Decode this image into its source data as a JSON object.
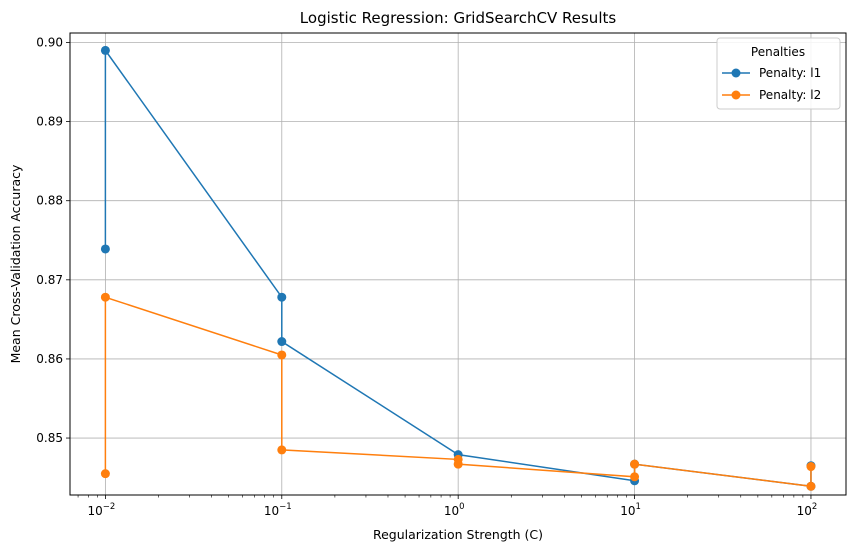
{
  "chart_data": {
    "type": "line",
    "title": "Logistic Regression: GridSearchCV Results",
    "xlabel": "Regularization Strength (C)",
    "ylabel": "Mean Cross-Validation Accuracy",
    "xscale": "log",
    "xlim": [
      0.0063,
      158
    ],
    "ylim": [
      0.8428,
      0.9012
    ],
    "xticks": [
      {
        "value": 0.01,
        "base": "10",
        "exp": "−2"
      },
      {
        "value": 0.1,
        "base": "10",
        "exp": "−1"
      },
      {
        "value": 1,
        "base": "10",
        "exp": "0"
      },
      {
        "value": 10,
        "base": "10",
        "exp": "1"
      },
      {
        "value": 100,
        "base": "10",
        "exp": "2"
      }
    ],
    "yticks": [
      "0.85",
      "0.86",
      "0.87",
      "0.88",
      "0.89",
      "0.90"
    ],
    "grid": true,
    "legend": {
      "title": "Penalties",
      "placement": "top-right"
    },
    "series": [
      {
        "name": "Penalty: l1",
        "color": "#1f77b4",
        "points": [
          {
            "x": 0.01,
            "y": 0.8739
          },
          {
            "x": 0.01,
            "y": 0.899
          },
          {
            "x": 0.1,
            "y": 0.8678
          },
          {
            "x": 0.1,
            "y": 0.8622
          },
          {
            "x": 1,
            "y": 0.8479
          },
          {
            "x": 10,
            "y": 0.8446
          },
          {
            "x": 10,
            "y": 0.8467
          },
          {
            "x": 100,
            "y": 0.8439
          },
          {
            "x": 100,
            "y": 0.8465
          }
        ]
      },
      {
        "name": "Penalty: l2",
        "color": "#ff7f0e",
        "points": [
          {
            "x": 0.01,
            "y": 0.8455
          },
          {
            "x": 0.01,
            "y": 0.8678
          },
          {
            "x": 0.1,
            "y": 0.8605
          },
          {
            "x": 0.1,
            "y": 0.8485
          },
          {
            "x": 1,
            "y": 0.8473
          },
          {
            "x": 1,
            "y": 0.8467
          },
          {
            "x": 10,
            "y": 0.8451
          },
          {
            "x": 10,
            "y": 0.8467
          },
          {
            "x": 100,
            "y": 0.8439
          },
          {
            "x": 100,
            "y": 0.8464
          }
        ]
      }
    ]
  }
}
